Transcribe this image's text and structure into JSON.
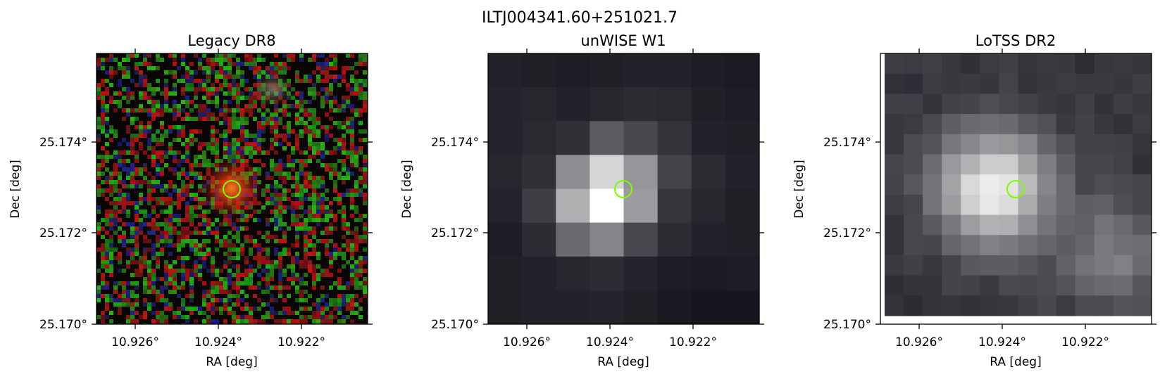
{
  "figure": {
    "suptitle": "ILTJ004341.60+251021.7"
  },
  "panels": [
    {
      "id": "legacy",
      "title": "Legacy DR8",
      "xlabel": "RA [deg]",
      "ylabel": "Dec [deg]",
      "xticks": [
        "10.926°",
        "10.924°",
        "10.922°"
      ],
      "yticks": [
        "25.174°",
        "25.172°",
        "25.170°"
      ],
      "image": "noisy RGB optical cutout, red/orange galaxy at center, faint blob upper right",
      "marker_color": "#7cfc00"
    },
    {
      "id": "unwise",
      "title": "unWISE W1",
      "xlabel": "RA [deg]",
      "ylabel": "Dec [deg]",
      "xticks": [
        "10.926°",
        "10.924°",
        "10.922°"
      ],
      "yticks": [
        "25.174°",
        "25.172°",
        "25.170°"
      ],
      "image": "coarse grayscale-blue pixel map with bright center",
      "marker_color": "#7cfc00"
    },
    {
      "id": "lotss",
      "title": "LoTSS DR2",
      "xlabel": "RA [deg]",
      "ylabel": "Dec [deg]",
      "xticks": [
        "10.926°",
        "10.924°",
        "10.922°"
      ],
      "yticks": [
        "25.174°",
        "25.172°",
        "25.170°"
      ],
      "image": "grayscale-blue radio map, extended emission to lower right",
      "marker_color": "#7cfc00"
    }
  ]
}
